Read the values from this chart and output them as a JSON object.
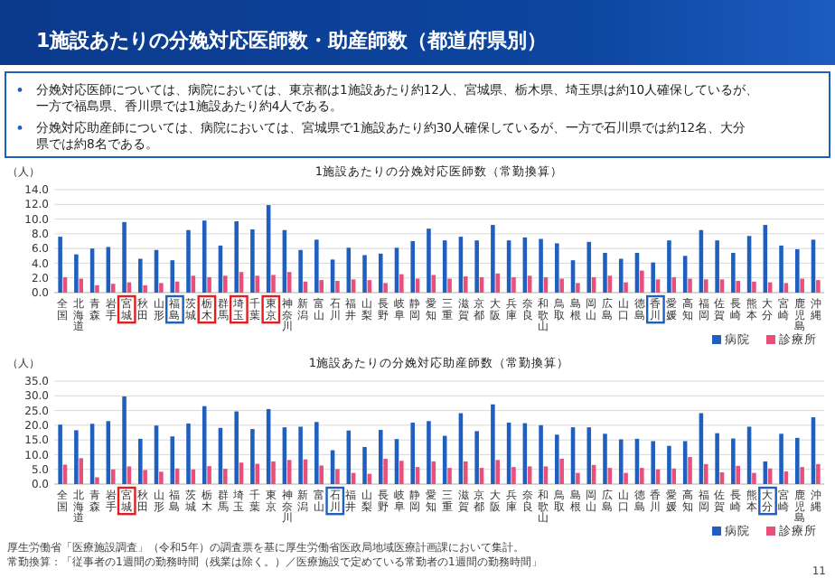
{
  "chart_data": [
    {
      "type": "bar",
      "title": "1施設あたりの分娩対応医師数（常勤換算）",
      "ylabel": "（人）",
      "annotations": [
        "1施設あたりの分娩対応医師数・助産師数（都道府県別）",
        "分娩対応医師については、病院においては、東京都は1施設あたり約12人、宮城県、栃木県、埼玉県は約10人確保しているが、一方で福島県、香川県では1施設あたり約4人である。",
        "分娩対応助産師については、病院においては、宮城県で1施設あたり約30人確保しているが、一方で石川県では約12名、大分県では約8名である。"
      ],
      "categories": [
        "全国",
        "北海道",
        "青森",
        "岩手",
        "宮城",
        "秋田",
        "山形",
        "福島",
        "茨城",
        "栃木",
        "群馬",
        "埼玉",
        "千葉",
        "東京",
        "神奈川",
        "新潟",
        "富山",
        "石川",
        "福井",
        "山梨",
        "長野",
        "岐阜",
        "静岡",
        "愛知",
        "三重",
        "滋賀",
        "京都",
        "大阪",
        "兵庫",
        "奈良",
        "和歌山",
        "鳥取",
        "島根",
        "岡山",
        "広島",
        "山口",
        "徳島",
        "香川",
        "愛媛",
        "高知",
        "福岡",
        "佐賀",
        "長崎",
        "熊本",
        "大分",
        "宮崎",
        "鹿児島",
        "沖縄"
      ],
      "series": [
        {
          "name": "病院",
          "color": "#1f5fbf",
          "values": [
            7.6,
            5.2,
            6.0,
            6.2,
            9.6,
            4.6,
            5.8,
            4.4,
            8.5,
            9.8,
            6.4,
            9.7,
            8.6,
            11.9,
            8.5,
            5.8,
            7.2,
            4.5,
            6.1,
            5.1,
            5.3,
            6.1,
            7.0,
            8.7,
            7.1,
            7.6,
            7.1,
            9.2,
            7.1,
            7.5,
            7.3,
            6.7,
            4.4,
            6.9,
            5.4,
            4.6,
            5.4,
            4.1,
            7.1,
            5.0,
            8.5,
            7.1,
            5.4,
            7.7,
            9.2,
            6.4,
            5.9,
            7.2
          ]
        },
        {
          "name": "診療所",
          "color": "#e8507a",
          "values": [
            2.1,
            1.9,
            1.0,
            1.2,
            1.4,
            1.0,
            1.3,
            1.5,
            2.3,
            2.1,
            2.3,
            2.8,
            2.3,
            2.4,
            2.8,
            1.5,
            1.7,
            1.6,
            1.8,
            1.7,
            1.3,
            2.5,
            1.9,
            2.4,
            1.9,
            2.2,
            2.1,
            2.6,
            2.1,
            2.3,
            2.1,
            1.9,
            1.3,
            2.1,
            2.3,
            1.4,
            3.0,
            1.8,
            2.1,
            1.9,
            1.8,
            1.8,
            1.6,
            1.5,
            1.4,
            1.3,
            1.9,
            1.7
          ]
        }
      ],
      "ylim": [
        0,
        14
      ],
      "yticks": [
        {
          "value": 0,
          "label": "0.0"
        },
        {
          "value": 2,
          "label": "2.0"
        },
        {
          "value": 4,
          "label": "4.0"
        },
        {
          "value": 6,
          "label": "6.0"
        },
        {
          "value": 8,
          "label": "8.0"
        },
        {
          "value": 10,
          "label": "10.0"
        },
        {
          "value": 12,
          "label": "12.0"
        },
        {
          "value": 14,
          "label": "14.0"
        }
      ],
      "grid": "y",
      "legend": "bottom right"
    },
    {
      "type": "bar",
      "title": "1施設あたりの分娩対応助産師数（常勤換算）",
      "ylabel": "（人）",
      "annotations": [
        "厚生労働省「医療施設調査」（令和5年）の調査票を基に厚生労働省医政局地域医療計画課において集計。",
        "常勤換算：「従事者の1週間の勤務時間（残業は除く。）／医療施設で定めている常勤者の1週間の勤務時間」",
        "11"
      ],
      "categories": [
        "全国",
        "北海道",
        "青森",
        "岩手",
        "宮城",
        "秋田",
        "山形",
        "福島",
        "茨城",
        "栃木",
        "群馬",
        "埼玉",
        "千葉",
        "東京",
        "神奈川",
        "新潟",
        "富山",
        "石川",
        "福井",
        "山梨",
        "長野",
        "岐阜",
        "静岡",
        "愛知",
        "三重",
        "滋賀",
        "京都",
        "大阪",
        "兵庫",
        "奈良",
        "和歌山",
        "鳥取",
        "島根",
        "岡山",
        "広島",
        "山口",
        "徳島",
        "香川",
        "愛媛",
        "高知",
        "福岡",
        "佐賀",
        "長崎",
        "熊本",
        "大分",
        "宮崎",
        "鹿児島",
        "沖縄"
      ],
      "series": [
        {
          "name": "病院",
          "color": "#1f5fbf",
          "values": [
            20.2,
            18.3,
            20.5,
            21.4,
            29.8,
            15.4,
            19.9,
            16.2,
            20.6,
            26.5,
            19.1,
            24.7,
            18.7,
            25.5,
            19.3,
            19.5,
            21.1,
            11.5,
            18.2,
            12.6,
            18.4,
            15.3,
            20.9,
            21.4,
            16.4,
            24.1,
            18.0,
            27.1,
            20.9,
            20.7,
            20.0,
            16.8,
            19.3,
            19.3,
            17.1,
            15.2,
            15.4,
            14.6,
            13.0,
            14.6,
            24.1,
            17.3,
            15.5,
            19.5,
            7.7,
            17.1,
            15.7,
            22.7
          ]
        },
        {
          "name": "診療所",
          "color": "#e8507a",
          "values": [
            6.6,
            8.8,
            2.3,
            5.0,
            6.0,
            4.8,
            4.2,
            5.3,
            5.0,
            6.1,
            5.2,
            7.3,
            6.9,
            7.7,
            8.2,
            8.4,
            6.3,
            5.1,
            3.8,
            3.5,
            8.6,
            7.9,
            5.8,
            7.7,
            5.5,
            7.7,
            5.5,
            8.2,
            5.8,
            6.0,
            6.0,
            8.6,
            3.8,
            6.5,
            5.5,
            3.8,
            5.5,
            5.0,
            5.3,
            9.2,
            6.8,
            4.0,
            6.2,
            3.8,
            5.3,
            4.3,
            5.8,
            6.8
          ]
        }
      ],
      "ylim": [
        0,
        35
      ],
      "yticks": [
        {
          "value": 0,
          "label": "0.0"
        },
        {
          "value": 5,
          "label": "5.0"
        },
        {
          "value": 10,
          "label": "10.0"
        },
        {
          "value": 15,
          "label": "15.0"
        },
        {
          "value": 20,
          "label": "20.0"
        },
        {
          "value": 25,
          "label": "25.0"
        },
        {
          "value": 30,
          "label": "30.0"
        },
        {
          "value": 35,
          "label": "35.0"
        }
      ],
      "grid": "y",
      "legend": "bottom right"
    }
  ]
}
